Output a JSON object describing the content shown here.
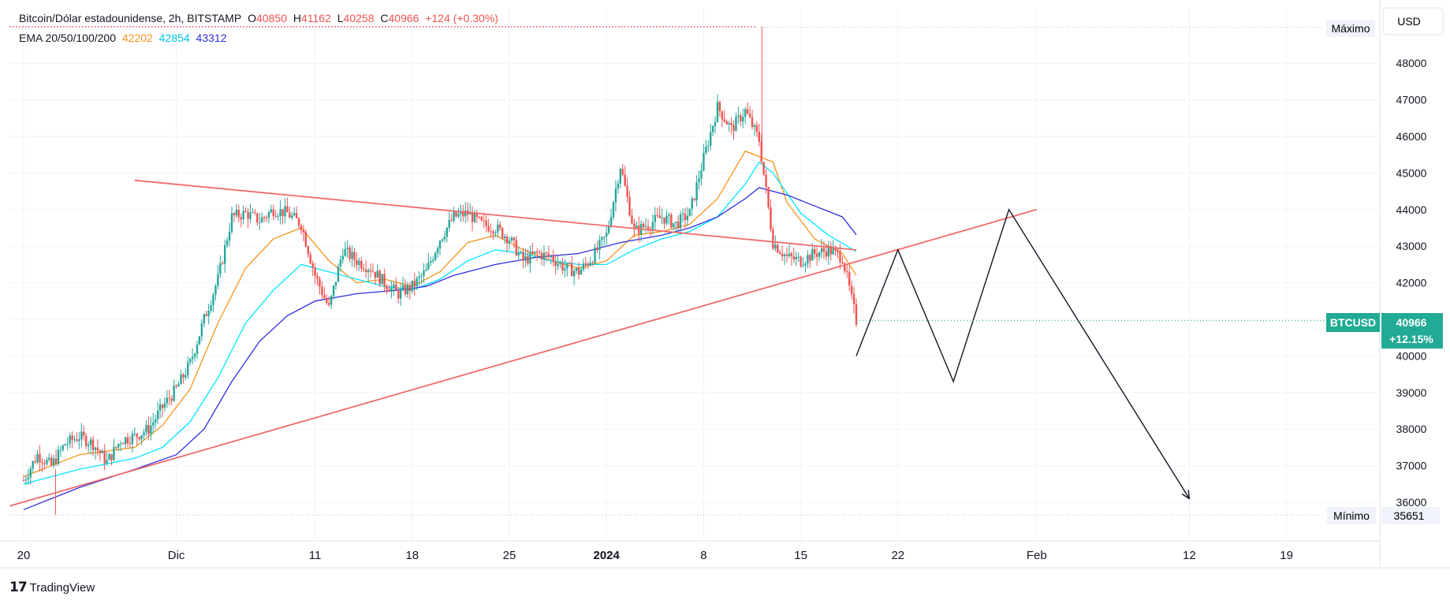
{
  "header": {
    "symbol_line": "Bitcoin/Dólar estadounidense, 2h, BITSTAMP",
    "o_label": "O",
    "o_value": "40850",
    "h_label": "H",
    "h_value": "41162",
    "l_label": "L",
    "l_value": "40258",
    "c_label": "C",
    "c_value": "40966",
    "change": "+124 (+0.30%)"
  },
  "ema_legend": {
    "label": "EMA 20/50/100/200",
    "values": [
      "42202",
      "42854",
      "43312"
    ],
    "colors": [
      "#f7931a",
      "#00e5ff",
      "#2e2ee0"
    ]
  },
  "currency": "USD",
  "price_labels": {
    "max_label": "Máximo",
    "min_label": "Mínimo",
    "min_value": "35651",
    "symbol": "BTCUSD",
    "last": "40966",
    "change_pct": "+12.15%"
  },
  "branding": {
    "icon": "tradingview-logo-icon",
    "name": "TradingView"
  },
  "colors": {
    "up": "#26a69a",
    "down": "#ef5350",
    "trend": "#f06b6b",
    "projection": "#131722",
    "accent": "#22ab94"
  },
  "chart_data": {
    "type": "candlestick",
    "y_ticks": [
      36000,
      37000,
      38000,
      39000,
      40000,
      41000,
      42000,
      43000,
      44000,
      45000,
      46000,
      47000,
      48000
    ],
    "ylim": [
      35400,
      49200
    ],
    "x_ticks": [
      {
        "label": "20",
        "t": 0
      },
      {
        "label": "Dic",
        "t": 11
      },
      {
        "label": "11",
        "t": 21
      },
      {
        "label": "18",
        "t": 28
      },
      {
        "label": "25",
        "t": 35
      },
      {
        "label": "2024",
        "t": 42
      },
      {
        "label": "8",
        "t": 49
      },
      {
        "label": "15",
        "t": 56
      },
      {
        "label": "22",
        "t": 63
      },
      {
        "label": "Feb",
        "t": 73
      },
      {
        "label": "12",
        "t": 84
      },
      {
        "label": "19",
        "t": 91
      }
    ],
    "price_path": [
      [
        0,
        36600
      ],
      [
        1,
        37300
      ],
      [
        2,
        37000
      ],
      [
        3,
        37600
      ],
      [
        4,
        37800
      ],
      [
        5,
        37600
      ],
      [
        6,
        37100
      ],
      [
        7,
        37700
      ],
      [
        8,
        37800
      ],
      [
        9,
        38000
      ],
      [
        10,
        38600
      ],
      [
        11,
        39100
      ],
      [
        12,
        39800
      ],
      [
        13,
        41000
      ],
      [
        14,
        42100
      ],
      [
        15,
        43800
      ],
      [
        16,
        43900
      ],
      [
        17,
        43700
      ],
      [
        18,
        44000
      ],
      [
        19,
        43900
      ],
      [
        20,
        43600
      ],
      [
        21,
        42200
      ],
      [
        22,
        41300
      ],
      [
        23,
        42900
      ],
      [
        24,
        42600
      ],
      [
        25,
        42400
      ],
      [
        26,
        42000
      ],
      [
        27,
        41700
      ],
      [
        28,
        41900
      ],
      [
        29,
        42300
      ],
      [
        30,
        43200
      ],
      [
        31,
        43800
      ],
      [
        32,
        43900
      ],
      [
        33,
        43600
      ],
      [
        34,
        43500
      ],
      [
        35,
        43200
      ],
      [
        36,
        42600
      ],
      [
        37,
        42800
      ],
      [
        38,
        42700
      ],
      [
        39,
        42400
      ],
      [
        40,
        42300
      ],
      [
        41,
        42700
      ],
      [
        42,
        43300
      ],
      [
        43,
        45200
      ],
      [
        44,
        43400
      ],
      [
        45,
        43600
      ],
      [
        46,
        43800
      ],
      [
        47,
        43600
      ],
      [
        48,
        43900
      ],
      [
        49,
        45400
      ],
      [
        50,
        46800
      ],
      [
        51,
        46200
      ],
      [
        52,
        46700
      ],
      [
        53,
        45900
      ],
      [
        54,
        43100
      ],
      [
        55,
        42700
      ],
      [
        56,
        42600
      ],
      [
        57,
        42800
      ],
      [
        58,
        42900
      ],
      [
        59,
        42700
      ],
      [
        60,
        40966
      ]
    ],
    "ema_series": [
      {
        "name": "EMA 20",
        "color": "#f7931a",
        "values": [
          [
            0,
            36700
          ],
          [
            4,
            37300
          ],
          [
            8,
            37500
          ],
          [
            10,
            38100
          ],
          [
            12,
            39100
          ],
          [
            14,
            40900
          ],
          [
            16,
            42400
          ],
          [
            18,
            43200
          ],
          [
            20,
            43500
          ],
          [
            22,
            42600
          ],
          [
            24,
            42000
          ],
          [
            26,
            42100
          ],
          [
            28,
            41900
          ],
          [
            30,
            42300
          ],
          [
            32,
            43100
          ],
          [
            34,
            43300
          ],
          [
            36,
            42900
          ],
          [
            38,
            42600
          ],
          [
            40,
            42400
          ],
          [
            42,
            42600
          ],
          [
            44,
            43300
          ],
          [
            46,
            43400
          ],
          [
            48,
            43600
          ],
          [
            50,
            44300
          ],
          [
            52,
            45600
          ],
          [
            54,
            45300
          ],
          [
            55,
            44200
          ],
          [
            57,
            43200
          ],
          [
            59,
            42800
          ],
          [
            60,
            42202
          ]
        ]
      },
      {
        "name": "EMA 50",
        "color": "#00e5ff",
        "values": [
          [
            0,
            36500
          ],
          [
            4,
            36900
          ],
          [
            8,
            37200
          ],
          [
            10,
            37500
          ],
          [
            12,
            38200
          ],
          [
            14,
            39400
          ],
          [
            16,
            40900
          ],
          [
            18,
            41800
          ],
          [
            20,
            42500
          ],
          [
            22,
            42300
          ],
          [
            24,
            42100
          ],
          [
            26,
            41900
          ],
          [
            28,
            41800
          ],
          [
            30,
            42100
          ],
          [
            32,
            42600
          ],
          [
            34,
            42900
          ],
          [
            36,
            42800
          ],
          [
            38,
            42600
          ],
          [
            40,
            42500
          ],
          [
            42,
            42500
          ],
          [
            44,
            42900
          ],
          [
            46,
            43200
          ],
          [
            48,
            43400
          ],
          [
            50,
            43800
          ],
          [
            52,
            44700
          ],
          [
            53,
            45300
          ],
          [
            54,
            45000
          ],
          [
            56,
            43900
          ],
          [
            58,
            43300
          ],
          [
            60,
            42854
          ]
        ]
      },
      {
        "name": "EMA 100",
        "color": "#2e2ee0",
        "values": [
          [
            0,
            35800
          ],
          [
            4,
            36400
          ],
          [
            8,
            36900
          ],
          [
            11,
            37300
          ],
          [
            13,
            38000
          ],
          [
            15,
            39300
          ],
          [
            17,
            40400
          ],
          [
            19,
            41100
          ],
          [
            21,
            41500
          ],
          [
            24,
            41700
          ],
          [
            27,
            41800
          ],
          [
            29,
            41900
          ],
          [
            31,
            42200
          ],
          [
            34,
            42500
          ],
          [
            37,
            42700
          ],
          [
            40,
            42800
          ],
          [
            43,
            43100
          ],
          [
            46,
            43300
          ],
          [
            48,
            43500
          ],
          [
            50,
            43800
          ],
          [
            52,
            44300
          ],
          [
            53,
            44600
          ],
          [
            55,
            44400
          ],
          [
            57,
            44100
          ],
          [
            59,
            43800
          ],
          [
            60,
            43312
          ]
        ]
      }
    ],
    "trendlines": [
      {
        "name": "descending-resistance",
        "points": [
          [
            8,
            44800
          ],
          [
            60,
            42900
          ]
        ]
      },
      {
        "name": "ascending-support",
        "points": [
          [
            -1,
            35900
          ],
          [
            73,
            44000
          ]
        ]
      }
    ],
    "projection": [
      [
        60,
        40000
      ],
      [
        63,
        42900
      ],
      [
        67,
        39300
      ],
      [
        71,
        44000
      ],
      [
        84,
        36100
      ]
    ],
    "max_level": 49000,
    "min_level": 35651
  }
}
